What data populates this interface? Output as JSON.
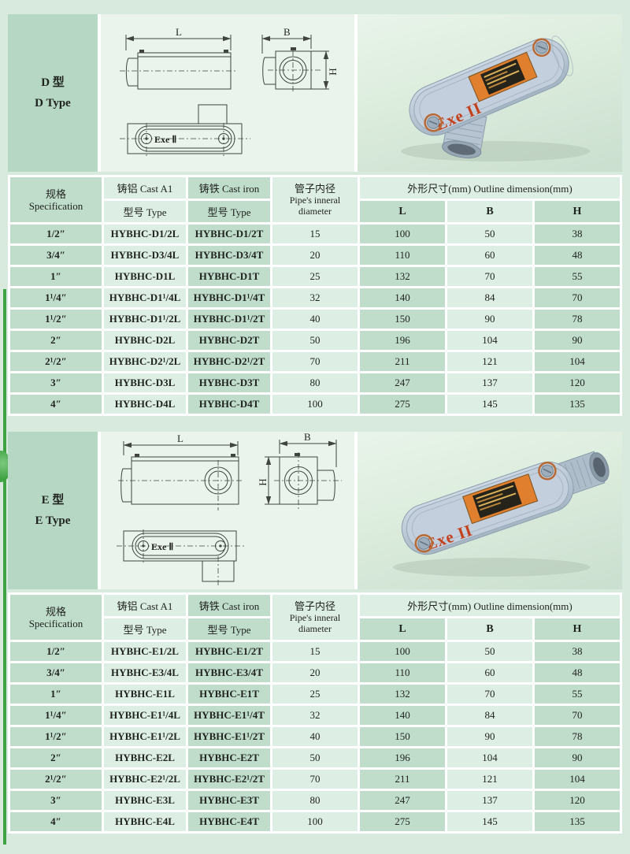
{
  "colors": {
    "page_bg": "#d8eade",
    "cell_dark": "#c0ddcc",
    "cell_light": "#ddefe5",
    "type_label_cell": "#b7d7c5",
    "edge_bar_green": "#3fa344",
    "product_marking_orange": "#c3421d",
    "nameplate_orange": "#e0802e"
  },
  "sections": [
    {
      "id": "D",
      "label_line1": "D 型",
      "label_line2": "D Type",
      "drawing": {
        "dim_length": "L",
        "dim_width": "B",
        "dim_height": "H",
        "cover_marking": "Exe Ⅱ"
      },
      "photo": {
        "cover_marking": "Exe II"
      },
      "table": {
        "header": {
          "spec_cn": "规格",
          "spec_en": "Specification",
          "cast_aluminum": "铸铝 Cast A1",
          "cast_iron": "铸铁 Cast iron",
          "type_label": "型号 Type",
          "pipe_cn": "管子内径",
          "pipe_en_line1": "Pipe's inneral",
          "pipe_en_line2": "diameter",
          "outline": "外形尺寸(mm) Outline dimension(mm)",
          "col_l": "L",
          "col_b": "B",
          "col_h": "H"
        },
        "rows": [
          {
            "spec": "1/2″",
            "al": "HYBHC-D1/2L",
            "iron": "HYBHC-D1/2T",
            "pipe": "15",
            "l": "100",
            "b": "50",
            "h": "38"
          },
          {
            "spec": "3/4″",
            "al": "HYBHC-D3/4L",
            "iron": "HYBHC-D3/4T",
            "pipe": "20",
            "l": "110",
            "b": "60",
            "h": "48"
          },
          {
            "spec": "1″",
            "al": "HYBHC-D1L",
            "iron": "HYBHC-D1T",
            "pipe": "25",
            "l": "132",
            "b": "70",
            "h": "55"
          },
          {
            "spec": "1¹/4″",
            "al": "HYBHC-D1¹/4L",
            "iron": "HYBHC-D1¹/4T",
            "pipe": "32",
            "l": "140",
            "b": "84",
            "h": "70"
          },
          {
            "spec": "1¹/2″",
            "al": "HYBHC-D1¹/2L",
            "iron": "HYBHC-D1¹/2T",
            "pipe": "40",
            "l": "150",
            "b": "90",
            "h": "78"
          },
          {
            "spec": "2″",
            "al": "HYBHC-D2L",
            "iron": "HYBHC-D2T",
            "pipe": "50",
            "l": "196",
            "b": "104",
            "h": "90"
          },
          {
            "spec": "2¹/2″",
            "al": "HYBHC-D2¹/2L",
            "iron": "HYBHC-D2¹/2T",
            "pipe": "70",
            "l": "211",
            "b": "121",
            "h": "104"
          },
          {
            "spec": "3″",
            "al": "HYBHC-D3L",
            "iron": "HYBHC-D3T",
            "pipe": "80",
            "l": "247",
            "b": "137",
            "h": "120"
          },
          {
            "spec": "4″",
            "al": "HYBHC-D4L",
            "iron": "HYBHC-D4T",
            "pipe": "100",
            "l": "275",
            "b": "145",
            "h": "135"
          }
        ]
      }
    },
    {
      "id": "E",
      "label_line1": "E 型",
      "label_line2": "E Type",
      "drawing": {
        "dim_length": "L",
        "dim_width": "B",
        "dim_height": "H",
        "cover_marking": "Exe Ⅱ"
      },
      "photo": {
        "cover_marking": "Exe II"
      },
      "table": {
        "header": {
          "spec_cn": "规格",
          "spec_en": "Specification",
          "cast_aluminum": "铸铝 Cast A1",
          "cast_iron": "铸铁 Cast iron",
          "type_label": "型号 Type",
          "pipe_cn": "管子内径",
          "pipe_en_line1": "Pipe's inneral",
          "pipe_en_line2": "diameter",
          "outline": "外形尺寸(mm) Outline dimension(mm)",
          "col_l": "L",
          "col_b": "B",
          "col_h": "H"
        },
        "rows": [
          {
            "spec": "1/2″",
            "al": "HYBHC-E1/2L",
            "iron": "HYBHC-E1/2T",
            "pipe": "15",
            "l": "100",
            "b": "50",
            "h": "38"
          },
          {
            "spec": "3/4″",
            "al": "HYBHC-E3/4L",
            "iron": "HYBHC-E3/4T",
            "pipe": "20",
            "l": "110",
            "b": "60",
            "h": "48"
          },
          {
            "spec": "1″",
            "al": "HYBHC-E1L",
            "iron": "HYBHC-E1T",
            "pipe": "25",
            "l": "132",
            "b": "70",
            "h": "55"
          },
          {
            "spec": "1¹/4″",
            "al": "HYBHC-E1¹/4L",
            "iron": "HYBHC-E1¹/4T",
            "pipe": "32",
            "l": "140",
            "b": "84",
            "h": "70"
          },
          {
            "spec": "1¹/2″",
            "al": "HYBHC-E1¹/2L",
            "iron": "HYBHC-E1¹/2T",
            "pipe": "40",
            "l": "150",
            "b": "90",
            "h": "78"
          },
          {
            "spec": "2″",
            "al": "HYBHC-E2L",
            "iron": "HYBHC-E2T",
            "pipe": "50",
            "l": "196",
            "b": "104",
            "h": "90"
          },
          {
            "spec": "2¹/2″",
            "al": "HYBHC-E2¹/2L",
            "iron": "HYBHC-E2¹/2T",
            "pipe": "70",
            "l": "211",
            "b": "121",
            "h": "104"
          },
          {
            "spec": "3″",
            "al": "HYBHC-E3L",
            "iron": "HYBHC-E3T",
            "pipe": "80",
            "l": "247",
            "b": "137",
            "h": "120"
          },
          {
            "spec": "4″",
            "al": "HYBHC-E4L",
            "iron": "HYBHC-E4T",
            "pipe": "100",
            "l": "275",
            "b": "145",
            "h": "135"
          }
        ]
      }
    }
  ]
}
